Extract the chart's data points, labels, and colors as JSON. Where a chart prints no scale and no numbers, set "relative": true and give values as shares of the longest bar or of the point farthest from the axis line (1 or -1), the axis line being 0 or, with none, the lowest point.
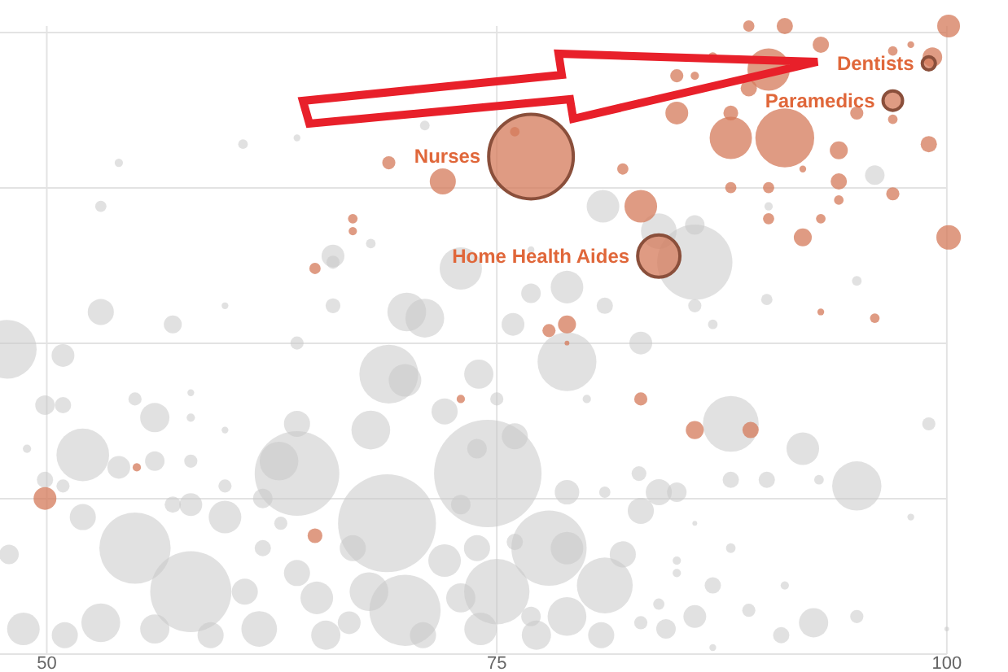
{
  "chart_data": {
    "type": "bubble",
    "relative": true,
    "grid": true,
    "xlim": [
      47.4,
      103.4
    ],
    "xticks": [
      50,
      75,
      100
    ],
    "series": [
      {
        "color": "#c8c8c8",
        "x": [
          71.0,
          60.9,
          63.9,
          54.0,
          53.0,
          68.0,
          65.9,
          65.9,
          73.0,
          53.0,
          59.9,
          65.9,
          70.0,
          71.0,
          57.0,
          47.8,
          80.9,
          84.0,
          86.0,
          86.0,
          96.0,
          90.1,
          78.9,
          76.9,
          81.0,
          75.9,
          90.0,
          95.0,
          87.0,
          86.0,
          76.9,
          78.9,
          83.0,
          80.0,
          76.0,
          75.0,
          88.0,
          92.0,
          99.0,
          82.9,
          88.0,
          90.0,
          92.9,
          95.0,
          78.9,
          81.0,
          84.0,
          85.0,
          83.0,
          74.5,
          77.9,
          78.9,
          76.0,
          81.0,
          82.0,
          78.9,
          76.9,
          75.0,
          86.0,
          89.0,
          87.0,
          88.0,
          85.0,
          85.0,
          84.0,
          91.0,
          95.0,
          98.0,
          100.0,
          87.0,
          86.0,
          83.0,
          50.9,
          63.9,
          69.0,
          69.9,
          74.0,
          68.0,
          72.1,
          49.9,
          50.9,
          56.0,
          54.9,
          58.0,
          58.0,
          59.9,
          63.9,
          52.0,
          54.0,
          56.0,
          58.0,
          63.9,
          62.9,
          48.9,
          49.9,
          50.9,
          73.9,
          68.9,
          73.0,
          59.9,
          62.0,
          59.9,
          58.0,
          57.0,
          52.0,
          54.9,
          58.0,
          63.9,
          69.9,
          65.0,
          62.0,
          63.0,
          47.9,
          61.0,
          67.0,
          67.9,
          72.1,
          73.9,
          73.0,
          48.7,
          51.0,
          53.0,
          56.0,
          59.1,
          61.8,
          65.5,
          66.8,
          70.9,
          74.1,
          77.2,
          80.8,
          84.4,
          90.8,
          92.6
        ],
        "values": [
          0.84,
          0.81,
          0.82,
          0.78,
          0.71,
          0.65,
          0.63,
          0.62,
          0.61,
          0.54,
          0.55,
          0.55,
          0.54,
          0.53,
          0.52,
          0.48,
          0.71,
          0.67,
          0.68,
          0.62,
          0.76,
          0.71,
          0.58,
          0.57,
          0.55,
          0.52,
          0.56,
          0.59,
          0.52,
          0.55,
          0.64,
          0.46,
          0.49,
          0.4,
          0.34,
          0.4,
          0.36,
          0.32,
          0.36,
          0.28,
          0.27,
          0.27,
          0.27,
          0.26,
          0.25,
          0.25,
          0.25,
          0.25,
          0.22,
          0.28,
          0.16,
          0.16,
          0.17,
          0.1,
          0.15,
          0.05,
          0.05,
          0.09,
          0.05,
          0.06,
          0.1,
          0.16,
          0.14,
          0.12,
          0.07,
          0.1,
          0.05,
          0.21,
          0.03,
          0.0,
          0.2,
          0.04,
          0.47,
          0.49,
          0.44,
          0.43,
          0.44,
          0.35,
          0.38,
          0.39,
          0.39,
          0.37,
          0.4,
          0.37,
          0.41,
          0.35,
          0.36,
          0.31,
          0.29,
          0.3,
          0.3,
          0.28,
          0.3,
          0.32,
          0.27,
          0.26,
          0.32,
          0.2,
          0.23,
          0.26,
          0.24,
          0.21,
          0.23,
          0.23,
          0.21,
          0.16,
          0.09,
          0.12,
          0.06,
          0.08,
          0.16,
          0.2,
          0.15,
          0.09,
          0.16,
          0.09,
          0.14,
          0.16,
          0.08,
          0.03,
          0.02,
          0.04,
          0.03,
          0.02,
          0.03,
          0.02,
          0.04,
          0.02,
          0.03,
          0.02,
          0.02,
          0.03,
          0.02,
          0.04
        ],
        "sizes": [
          0.008,
          0.008,
          0.004,
          0.006,
          0.011,
          0.008,
          0.045,
          0.015,
          0.155,
          0.059,
          0.004,
          0.019,
          0.13,
          0.13,
          0.028,
          0.3,
          0.092,
          0.11,
          0.033,
          0.49,
          0.033,
          0.006,
          0.092,
          0.033,
          0.023,
          0.045,
          0.011,
          0.008,
          0.008,
          0.015,
          0.004,
          0.3,
          0.045,
          0.006,
          0.059,
          0.015,
          0.27,
          0.092,
          0.015,
          0.019,
          0.023,
          0.023,
          0.008,
          0.21,
          0.052,
          0.011,
          0.059,
          0.033,
          0.059,
          1,
          0.49,
          0.092,
          0.023,
          0.27,
          0.059,
          0.13,
          0.033,
          0.37,
          0.045,
          0.015,
          0.023,
          0.008,
          0.006,
          0.006,
          0.011,
          0.006,
          0.015,
          0.004,
          0.002,
          0.004,
          0.002,
          0.015,
          0.045,
          0.015,
          0.3,
          0.092,
          0.074,
          0.13,
          0.059,
          0.033,
          0.023,
          0.074,
          0.015,
          0.006,
          0.004,
          0.004,
          0.059,
          0.24,
          0.045,
          0.033,
          0.015,
          0.62,
          0.13,
          0.006,
          0.023,
          0.015,
          0.033,
          0.83,
          0.033,
          0.015,
          0.033,
          0.092,
          0.045,
          0.023,
          0.059,
          0.44,
          0.57,
          0.059,
          0.44,
          0.092,
          0.023,
          0.015,
          0.033,
          0.059,
          0.059,
          0.13,
          0.092,
          0.059,
          0.074,
          0.092,
          0.059,
          0.13,
          0.074,
          0.059,
          0.11,
          0.074,
          0.045,
          0.059,
          0.092,
          0.074,
          0.059,
          0.033,
          0.023,
          0.074
        ]
      },
      {
        "color": "#d4795a",
        "x": [
          69.0,
          72.0,
          67.0,
          67.0,
          64.9,
          89.0,
          91.0,
          93.0,
          100.1,
          97.0,
          98.0,
          99.2,
          87.0,
          90.1,
          85.0,
          86.0,
          89.0,
          95.0,
          97.0,
          85.0,
          88.0,
          88.0,
          91.0,
          76.0,
          94.0,
          99.0,
          82.0,
          92.0,
          88.0,
          90.1,
          94.0,
          94.0,
          97.0,
          83.0,
          90.1,
          93.0,
          92.0,
          100.1,
          93.0,
          96.0,
          78.9,
          77.9,
          78.9,
          83.0,
          86.0,
          89.1,
          73.0,
          55.0,
          49.9,
          64.9
        ],
        "values": [
          0.78,
          0.75,
          0.69,
          0.67,
          0.61,
          1,
          1,
          0.97,
          1,
          0.96,
          0.97,
          0.95,
          0.95,
          0.93,
          0.92,
          0.92,
          0.9,
          0.86,
          0.85,
          0.86,
          0.86,
          0.82,
          0.82,
          0.83,
          0.8,
          0.81,
          0.77,
          0.77,
          0.74,
          0.74,
          0.75,
          0.72,
          0.73,
          0.71,
          0.69,
          0.69,
          0.66,
          0.66,
          0.54,
          0.53,
          0.52,
          0.51,
          0.49,
          0.4,
          0.35,
          0.35,
          0.4,
          0.29,
          0.24,
          0.18
        ],
        "sizes": [
          0.015,
          0.059,
          0.008,
          0.006,
          0.011,
          0.011,
          0.023,
          0.023,
          0.045,
          0.008,
          0.004,
          0.033,
          0.008,
          0.155,
          0.015,
          0.006,
          0.023,
          0.015,
          0.008,
          0.045,
          0.019,
          0.155,
          0.3,
          0.008,
          0.028,
          0.023,
          0.011,
          0.004,
          0.011,
          0.011,
          0.023,
          0.008,
          0.015,
          0.092,
          0.011,
          0.008,
          0.028,
          0.052,
          0.004,
          0.008,
          0.028,
          0.015,
          0.002,
          0.015,
          0.028,
          0.023,
          0.006,
          0.006,
          0.045,
          0.019
        ]
      },
      {
        "color": "#d4795a",
        "line_style": "solid",
        "x": [
          76.9,
          84.0,
          99.0,
          97.0
        ],
        "values": [
          0.79,
          0.63,
          0.94,
          0.88
        ],
        "sizes": [
          0.62,
          0.155,
          0.015,
          0.033
        ]
      }
    ],
    "annotations": [
      {
        "text": "Nurses",
        "x": 76.9,
        "y": 0.79
      },
      {
        "text": "Home Health Aides",
        "x": 84.0,
        "y": 0.63
      },
      {
        "text": "Dentists",
        "x": 99.0,
        "y": 0.94
      },
      {
        "text": "Paramedics",
        "x": 97.0,
        "y": 0.88
      }
    ]
  }
}
